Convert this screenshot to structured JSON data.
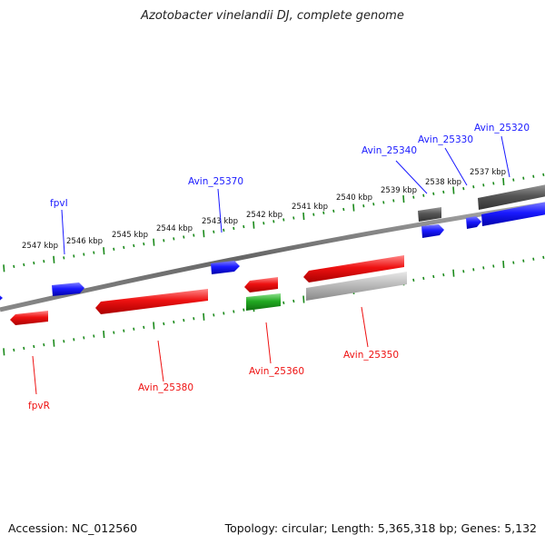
{
  "title": "Azotobacter vinelandii DJ, complete genome",
  "footer": {
    "accession": "Accession: NC_012560",
    "summary": "Topology: circular; Length: 5,365,318 bp; Genes: 5,132"
  },
  "ticks": [
    "2547 kbp",
    "2546 kbp",
    "2545 kbp",
    "2544 kbp",
    "2543 kbp",
    "2542 kbp",
    "2541 kbp",
    "2540 kbp",
    "2539 kbp",
    "2538 kbp",
    "2537 kbp"
  ],
  "genes": {
    "top": [
      "fpvI",
      "Avin_25370",
      "Avin_25340",
      "Avin_25330",
      "Avin_25320"
    ],
    "bottom": [
      "fpvR",
      "Avin_25380",
      "Avin_25360",
      "Avin_25350"
    ]
  },
  "colors": {
    "forward": "#1a1aff",
    "reverse": "#ee1111",
    "rna": "#22aa22",
    "grey_dark": "#555555",
    "grey_light": "#bbbbbb",
    "tick": "#1a8a1a"
  }
}
